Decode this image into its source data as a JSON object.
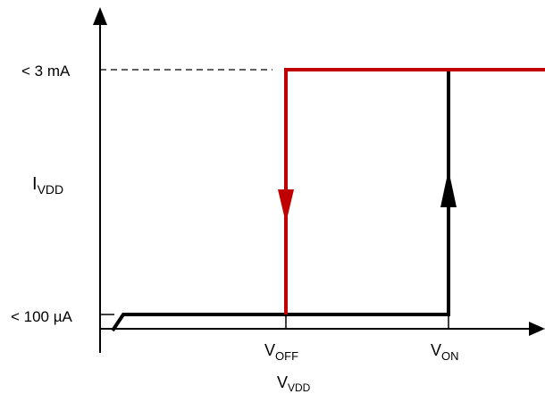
{
  "diagram": {
    "y_label": {
      "main": "I",
      "sub": "VDD"
    },
    "x_label": {
      "main": "V",
      "sub": "VDD"
    },
    "y_ticks": {
      "high": "< 3 mA",
      "low": "< 100 µA"
    },
    "x_ticks": {
      "off": {
        "main": "V",
        "sub": "OFF"
      },
      "on": {
        "main": "V",
        "sub": "ON"
      }
    },
    "colors": {
      "turn_off_path": "#c00000",
      "turn_on_path": "#000000",
      "axes": "#000000"
    }
  }
}
